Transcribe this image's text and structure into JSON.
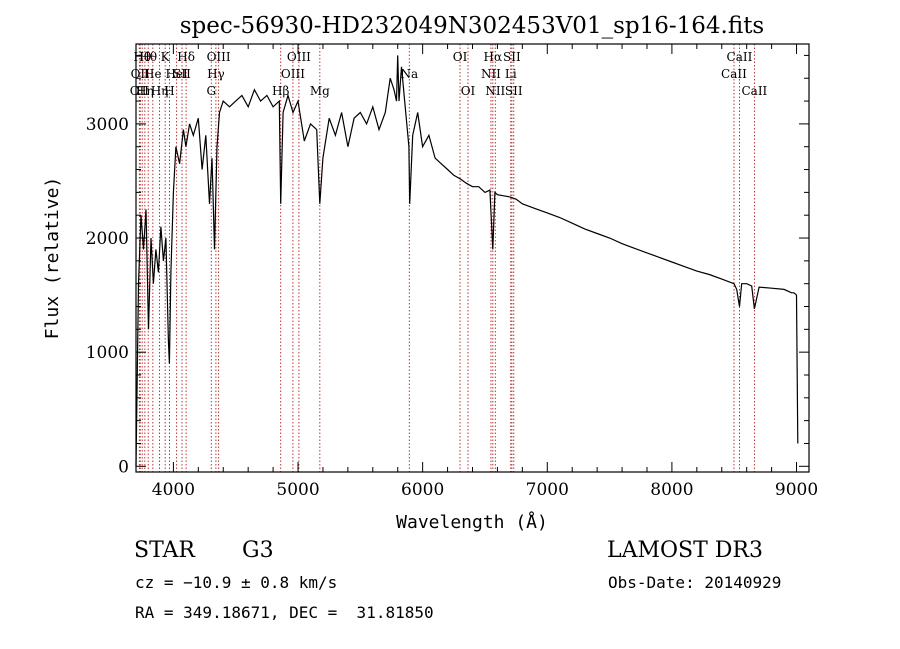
{
  "chart_data": {
    "type": "line",
    "title": "spec-56930-HD232049N302453V01_sp16-164.fits",
    "xlabel": "Wavelength (Å)",
    "ylabel": "Flux (relative)",
    "xlim": [
      3700,
      9100
    ],
    "ylim": [
      -50,
      3700
    ],
    "xticks": [
      4000,
      5000,
      6000,
      7000,
      8000,
      9000
    ],
    "yticks": [
      0,
      1000,
      2000,
      3000
    ],
    "grid": false,
    "line_color": "#000000",
    "marker_color": "#b22222",
    "series": [
      {
        "name": "flux",
        "x": [
          3700,
          3720,
          3740,
          3760,
          3780,
          3800,
          3820,
          3840,
          3860,
          3880,
          3900,
          3920,
          3940,
          3960,
          3968,
          3980,
          4000,
          4020,
          4050,
          4080,
          4100,
          4130,
          4160,
          4200,
          4230,
          4260,
          4290,
          4310,
          4330,
          4350,
          4370,
          4400,
          4450,
          4500,
          4550,
          4600,
          4650,
          4700,
          4750,
          4800,
          4850,
          4861,
          4880,
          4920,
          4960,
          5000,
          5050,
          5100,
          5150,
          5175,
          5200,
          5250,
          5300,
          5350,
          5400,
          5450,
          5500,
          5550,
          5600,
          5650,
          5700,
          5740,
          5770,
          5790,
          5800,
          5810,
          5830,
          5860,
          5890,
          5896,
          5920,
          5960,
          6000,
          6050,
          6100,
          6150,
          6200,
          6250,
          6300,
          6350,
          6400,
          6450,
          6500,
          6540,
          6563,
          6580,
          6600,
          6650,
          6700,
          6750,
          6800,
          6900,
          7000,
          7100,
          7200,
          7300,
          7400,
          7500,
          7600,
          7700,
          7800,
          7900,
          8000,
          8100,
          8200,
          8300,
          8400,
          8498,
          8520,
          8542,
          8560,
          8600,
          8640,
          8662,
          8700,
          8800,
          8900,
          8960,
          8980,
          9000,
          9010
        ],
        "y": [
          0,
          1600,
          2200,
          1900,
          2250,
          1200,
          2000,
          1600,
          1900,
          1700,
          2100,
          1800,
          2000,
          1100,
          900,
          1700,
          2400,
          2800,
          2650,
          2950,
          2800,
          3000,
          2900,
          3050,
          2600,
          2900,
          2300,
          2700,
          1900,
          2800,
          3100,
          3200,
          3150,
          3200,
          3250,
          3150,
          3300,
          3200,
          3250,
          3150,
          3200,
          2300,
          3100,
          3250,
          3100,
          3200,
          2850,
          3000,
          2950,
          2300,
          2700,
          3050,
          2900,
          3100,
          2800,
          3050,
          3100,
          3000,
          3150,
          2950,
          3100,
          3400,
          3300,
          3200,
          3600,
          3200,
          3500,
          3150,
          2800,
          2300,
          2900,
          3100,
          2800,
          2900,
          2700,
          2650,
          2600,
          2550,
          2520,
          2480,
          2450,
          2450,
          2400,
          2420,
          1900,
          2400,
          2380,
          2370,
          2360,
          2340,
          2300,
          2260,
          2220,
          2180,
          2130,
          2080,
          2040,
          2000,
          1950,
          1910,
          1870,
          1830,
          1790,
          1750,
          1710,
          1680,
          1640,
          1600,
          1550,
          1400,
          1600,
          1600,
          1580,
          1380,
          1570,
          1560,
          1550,
          1520,
          1520,
          1500,
          200
        ]
      }
    ],
    "line_markers": [
      {
        "x": 3727,
        "tier": 2,
        "label": "OII"
      },
      {
        "x": 3734,
        "tier": 1,
        "label": "OII"
      },
      {
        "x": 3750,
        "tier": 0,
        "label": "Hθ"
      },
      {
        "x": 3771,
        "tier": 2,
        "label": "Hη"
      },
      {
        "x": 3798,
        "tier": 0,
        "label": "Hθ"
      },
      {
        "x": 3835,
        "tier": 1,
        "label": "He"
      },
      {
        "x": 3889,
        "tier": 2,
        "label": "Hη"
      },
      {
        "x": 3934,
        "tier": 0,
        "label": "K"
      },
      {
        "x": 3969,
        "tier": 2,
        "label": "H"
      },
      {
        "x": 4026,
        "tier": 1,
        "label": "HeI"
      },
      {
        "x": 4069,
        "tier": 1,
        "label": "SII"
      },
      {
        "x": 4102,
        "tier": 0,
        "label": "Hδ"
      },
      {
        "x": 4304,
        "tier": 2,
        "label": "G"
      },
      {
        "x": 4341,
        "tier": 1,
        "label": "Hγ"
      },
      {
        "x": 4363,
        "tier": 0,
        "label": "OIII"
      },
      {
        "x": 4861,
        "tier": 2,
        "label": "Hβ"
      },
      {
        "x": 4959,
        "tier": 1,
        "label": "OIII"
      },
      {
        "x": 5007,
        "tier": 0,
        "label": "OIII"
      },
      {
        "x": 5175,
        "tier": 2,
        "label": "Mg"
      },
      {
        "x": 5893,
        "tier": 1,
        "label": "Na"
      },
      {
        "x": 6300,
        "tier": 0,
        "label": "OI"
      },
      {
        "x": 6364,
        "tier": 2,
        "label": "OI"
      },
      {
        "x": 6548,
        "tier": 1,
        "label": "NII"
      },
      {
        "x": 6563,
        "tier": 0,
        "label": "Hα"
      },
      {
        "x": 6583,
        "tier": 2,
        "label": "NII"
      },
      {
        "x": 6707,
        "tier": 1,
        "label": "Li"
      },
      {
        "x": 6716,
        "tier": 0,
        "label": "SII"
      },
      {
        "x": 6731,
        "tier": 2,
        "label": "SII"
      },
      {
        "x": 8498,
        "tier": 1,
        "label": "CaII"
      },
      {
        "x": 8542,
        "tier": 0,
        "label": "CaII"
      },
      {
        "x": 8662,
        "tier": 2,
        "label": "CaII"
      }
    ]
  },
  "info": {
    "class_label": "STAR",
    "subclass": "G3",
    "survey": "LAMOST DR3",
    "redshift": "cz = −10.9 ± 0.8 km/s",
    "obs_date": "Obs-Date: 20140929",
    "coords": "RA = 349.18671, DEC =  31.81850"
  }
}
